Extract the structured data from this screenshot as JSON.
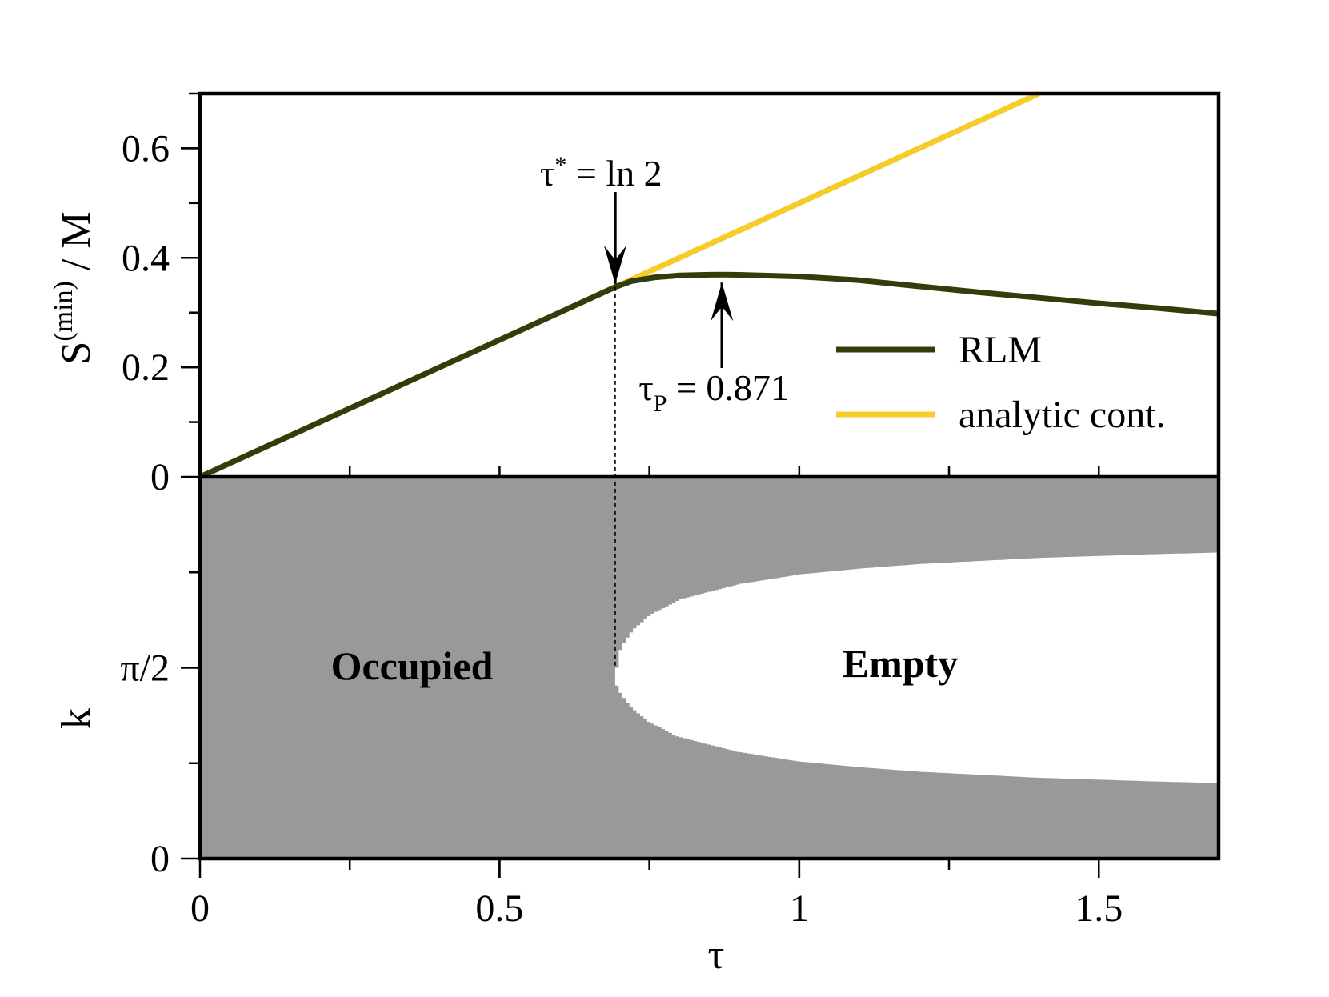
{
  "chart_data": [
    {
      "panel": "top",
      "type": "line",
      "xlabel": "τ",
      "ylabel": "S",
      "ylabel_superscript": "(min)",
      "ylabel_suffix": " / M",
      "xlim": [
        0,
        1.7
      ],
      "ylim": [
        0,
        0.7
      ],
      "yticks": [
        {
          "value": 0,
          "label": "0"
        },
        {
          "value": 0.2,
          "label": "0.2"
        },
        {
          "value": 0.4,
          "label": "0.4"
        },
        {
          "value": 0.6,
          "label": "0.6"
        }
      ],
      "grid": false,
      "legend_position": "lower-right",
      "series": [
        {
          "name": "RLM",
          "color": "#333d0a",
          "x": [
            0,
            0.1,
            0.2,
            0.3,
            0.4,
            0.5,
            0.6,
            0.693,
            0.72,
            0.76,
            0.8,
            0.85,
            0.871,
            0.9,
            1.0,
            1.1,
            1.2,
            1.3,
            1.4,
            1.5,
            1.6,
            1.7
          ],
          "y": [
            0,
            0.05,
            0.1,
            0.15,
            0.2,
            0.25,
            0.3,
            0.3466,
            0.3575,
            0.3645,
            0.3678,
            0.3692,
            0.3693,
            0.369,
            0.366,
            0.359,
            0.348,
            0.337,
            0.327,
            0.317,
            0.308,
            0.298
          ]
        },
        {
          "name": "analytic cont.",
          "color": "#f5cc2a",
          "x": [
            0.693,
            1.0,
            1.2,
            1.4
          ],
          "y": [
            0.3466,
            0.5,
            0.6,
            0.7
          ]
        }
      ],
      "annotations": [
        {
          "label": "τ",
          "superscript": "*",
          "suffix": " = ln 2",
          "x": 0.693,
          "direction": "down"
        },
        {
          "label": "τ",
          "subscript": "P",
          "suffix": " = 0.871",
          "x": 0.871,
          "direction": "up"
        }
      ]
    },
    {
      "panel": "bottom",
      "type": "area",
      "xlabel": "τ",
      "ylabel": "k",
      "xlim": [
        0,
        1.7
      ],
      "xticks": [
        {
          "value": 0,
          "label": "0"
        },
        {
          "value": 0.5,
          "label": "0.5"
        },
        {
          "value": 1,
          "label": "1"
        },
        {
          "value": 1.5,
          "label": "1.5"
        }
      ],
      "yticks": [
        {
          "value": 0,
          "label": "0"
        },
        {
          "value": 0.5,
          "label": "π/2"
        }
      ],
      "colors": {
        "occupied": "#999999",
        "empty": "#ffffff"
      },
      "regions": {
        "occupied": "Occupied",
        "empty": "Empty"
      },
      "boundary_start_tau": 0.693,
      "boundary_half_width": {
        "tau": [
          0.693,
          0.7,
          0.72,
          0.75,
          0.8,
          0.9,
          1.0,
          1.1,
          1.2,
          1.3,
          1.4,
          1.5,
          1.6,
          1.7
        ],
        "value": [
          0,
          0.055,
          0.1,
          0.14,
          0.18,
          0.22,
          0.245,
          0.26,
          0.272,
          0.28,
          0.288,
          0.293,
          0.298,
          0.302
        ]
      }
    }
  ]
}
